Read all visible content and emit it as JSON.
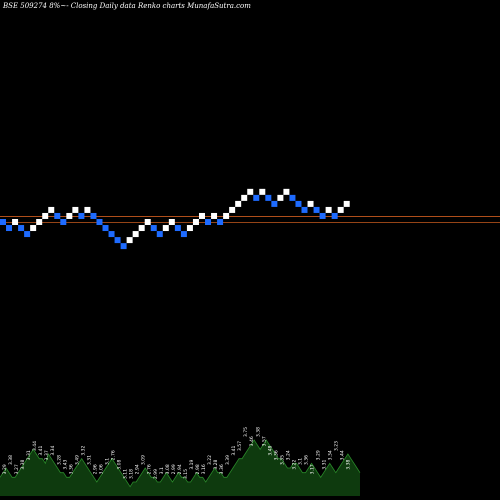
{
  "chart_data": {
    "type": "renko",
    "title": "BSE 509274  8%~- Closing Daily data  Renko  charts MunafaSutra.com",
    "colors": {
      "background": "#000000",
      "up_brick": "#ffffff",
      "down_brick": "#1e6bff",
      "reference_lines": "#c85a1e",
      "volume_area": "#0e3a0e",
      "volume_outline": "#2a8a2a",
      "volume_labels": "#ffffff"
    },
    "bricks": [
      {
        "col": 0,
        "row": 0,
        "dir": "down"
      },
      {
        "col": 1,
        "row": 1,
        "dir": "down"
      },
      {
        "col": 2,
        "row": 0,
        "dir": "up"
      },
      {
        "col": 3,
        "row": 1,
        "dir": "down"
      },
      {
        "col": 4,
        "row": 2,
        "dir": "down"
      },
      {
        "col": 5,
        "row": 1,
        "dir": "up"
      },
      {
        "col": 6,
        "row": 0,
        "dir": "up"
      },
      {
        "col": 7,
        "row": -1,
        "dir": "up"
      },
      {
        "col": 8,
        "row": -2,
        "dir": "up"
      },
      {
        "col": 9,
        "row": -1,
        "dir": "down"
      },
      {
        "col": 10,
        "row": 0,
        "dir": "down"
      },
      {
        "col": 11,
        "row": -1,
        "dir": "up"
      },
      {
        "col": 12,
        "row": -2,
        "dir": "up"
      },
      {
        "col": 13,
        "row": -1,
        "dir": "down"
      },
      {
        "col": 14,
        "row": -2,
        "dir": "up"
      },
      {
        "col": 15,
        "row": -1,
        "dir": "down"
      },
      {
        "col": 16,
        "row": 0,
        "dir": "down"
      },
      {
        "col": 17,
        "row": 1,
        "dir": "down"
      },
      {
        "col": 18,
        "row": 2,
        "dir": "down"
      },
      {
        "col": 19,
        "row": 3,
        "dir": "down"
      },
      {
        "col": 20,
        "row": 4,
        "dir": "down"
      },
      {
        "col": 21,
        "row": 3,
        "dir": "up"
      },
      {
        "col": 22,
        "row": 2,
        "dir": "up"
      },
      {
        "col": 23,
        "row": 1,
        "dir": "up"
      },
      {
        "col": 24,
        "row": 0,
        "dir": "up"
      },
      {
        "col": 25,
        "row": 1,
        "dir": "down"
      },
      {
        "col": 26,
        "row": 2,
        "dir": "down"
      },
      {
        "col": 27,
        "row": 1,
        "dir": "up"
      },
      {
        "col": 28,
        "row": 0,
        "dir": "up"
      },
      {
        "col": 29,
        "row": 1,
        "dir": "down"
      },
      {
        "col": 30,
        "row": 2,
        "dir": "down"
      },
      {
        "col": 31,
        "row": 1,
        "dir": "up"
      },
      {
        "col": 32,
        "row": 0,
        "dir": "up"
      },
      {
        "col": 33,
        "row": -1,
        "dir": "up"
      },
      {
        "col": 34,
        "row": 0,
        "dir": "down"
      },
      {
        "col": 35,
        "row": -1,
        "dir": "up"
      },
      {
        "col": 36,
        "row": 0,
        "dir": "down"
      },
      {
        "col": 37,
        "row": -1,
        "dir": "up"
      },
      {
        "col": 38,
        "row": -2,
        "dir": "up"
      },
      {
        "col": 39,
        "row": -3,
        "dir": "up"
      },
      {
        "col": 40,
        "row": -4,
        "dir": "up"
      },
      {
        "col": 41,
        "row": -5,
        "dir": "up"
      },
      {
        "col": 42,
        "row": -4,
        "dir": "down"
      },
      {
        "col": 43,
        "row": -5,
        "dir": "up"
      },
      {
        "col": 44,
        "row": -4,
        "dir": "down"
      },
      {
        "col": 45,
        "row": -3,
        "dir": "down"
      },
      {
        "col": 46,
        "row": -4,
        "dir": "up"
      },
      {
        "col": 47,
        "row": -5,
        "dir": "up"
      },
      {
        "col": 48,
        "row": -4,
        "dir": "down"
      },
      {
        "col": 49,
        "row": -3,
        "dir": "down"
      },
      {
        "col": 50,
        "row": -2,
        "dir": "down"
      },
      {
        "col": 51,
        "row": -3,
        "dir": "up"
      },
      {
        "col": 52,
        "row": -2,
        "dir": "down"
      },
      {
        "col": 53,
        "row": -1,
        "dir": "down"
      },
      {
        "col": 54,
        "row": -2,
        "dir": "up"
      },
      {
        "col": 55,
        "row": -1,
        "dir": "down"
      },
      {
        "col": 56,
        "row": -2,
        "dir": "up"
      },
      {
        "col": 57,
        "row": -3,
        "dir": "up"
      }
    ],
    "reference_lines": [
      {
        "row": 0.1
      },
      {
        "row": -0.9
      }
    ],
    "volume": {
      "values": [
        4,
        5,
        6,
        5,
        4,
        4,
        5,
        6,
        7,
        8,
        9,
        10,
        9,
        8,
        8,
        7,
        9,
        8,
        7,
        6,
        5,
        5,
        4,
        4,
        5,
        6,
        7,
        8,
        7,
        6,
        5,
        4,
        3,
        4,
        5,
        6,
        7,
        8,
        7,
        6,
        5,
        4,
        3,
        2,
        3,
        3,
        4,
        5,
        6,
        5,
        4,
        4,
        3,
        3,
        4,
        5,
        4,
        3,
        4,
        5,
        4,
        4,
        3,
        3,
        4,
        5,
        4,
        4,
        3,
        4,
        5,
        6,
        5,
        5,
        4,
        4,
        5,
        6,
        7,
        8,
        8,
        9,
        10,
        11,
        12,
        11,
        10,
        11,
        12,
        11,
        10,
        9,
        8,
        8,
        7,
        6,
        6,
        7,
        7,
        6,
        5,
        5,
        6,
        7,
        6,
        5,
        4,
        5,
        6,
        7,
        6,
        5,
        6,
        7,
        8,
        9,
        8,
        7,
        6,
        5
      ],
      "labels": [
        "3.29",
        "3.38",
        "3.27",
        "3.38",
        "3.31",
        "3.44",
        "3.41",
        "3.37",
        "3.34",
        "3.28",
        "3.43",
        "3.36",
        "3.49",
        "3.32",
        "3.31",
        "2.96",
        "3.06",
        "3.1",
        "2.76",
        "3.08",
        "3.11",
        "3.18",
        "2.94",
        "3.09",
        "2.76",
        "2.99",
        "3.1",
        "3.08",
        "2.99",
        "2.94",
        "3.15",
        "3.19",
        "2.98",
        "3.16",
        "3.22",
        "3.28",
        "3.36",
        "3.39",
        "3.41",
        "3.57",
        "3.75",
        "3.46",
        "3.38",
        "3.57",
        "3.48",
        "3.36",
        "3.35",
        "3.24",
        "3.22",
        "3.1",
        "3.36",
        "3.17",
        "3.29",
        "3.31",
        "3.34",
        "3.23",
        "3.44",
        "3.38"
      ]
    }
  }
}
